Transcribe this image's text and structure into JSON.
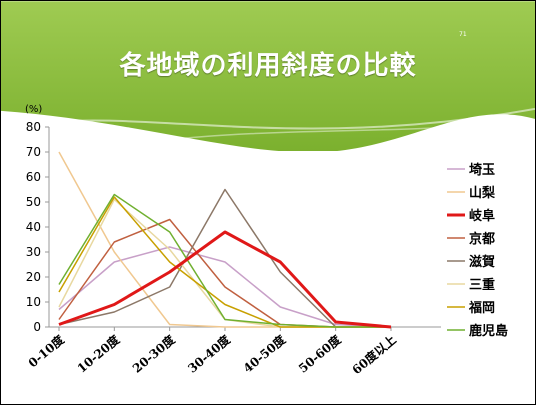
{
  "slide": {
    "title": "各地域の利用斜度の比較",
    "number": "71",
    "banner_color": "#8cbd3e"
  },
  "chart_data": {
    "type": "line",
    "title": "各地域の利用斜度の比較",
    "ylabel": "(%)",
    "xlabel": "",
    "ylim": [
      0,
      80
    ],
    "yticks": [
      0,
      10,
      20,
      30,
      40,
      50,
      60,
      70,
      80
    ],
    "categories": [
      "0-10度",
      "10-20度",
      "20-30度",
      "30-40度",
      "40-50度",
      "50-60度",
      "60度以上"
    ],
    "grid": false,
    "legend_position": "right",
    "series": [
      {
        "name": "埼玉",
        "color": "#c8a0c8",
        "width": 1.5,
        "values": [
          7,
          26,
          32,
          26,
          8,
          1,
          0
        ]
      },
      {
        "name": "山梨",
        "color": "#f0c890",
        "width": 1.5,
        "values": [
          70,
          30,
          1,
          0,
          0,
          0,
          0
        ]
      },
      {
        "name": "岐阜",
        "color": "#e01818",
        "width": 3,
        "values": [
          1,
          9,
          22,
          38,
          26,
          2,
          0
        ]
      },
      {
        "name": "京都",
        "color": "#c06040",
        "width": 1.5,
        "values": [
          3,
          34,
          43,
          16,
          1,
          0,
          0
        ]
      },
      {
        "name": "滋賀",
        "color": "#8c7868",
        "width": 1.5,
        "values": [
          1,
          6,
          16,
          55,
          22,
          0,
          0
        ]
      },
      {
        "name": "三重",
        "color": "#e8d8a0",
        "width": 1.5,
        "values": [
          8,
          51,
          31,
          3,
          0,
          0,
          0
        ]
      },
      {
        "name": "福岡",
        "color": "#c8a000",
        "width": 1.5,
        "values": [
          14,
          52,
          26,
          9,
          0,
          0,
          0
        ]
      },
      {
        "name": "鹿児島",
        "color": "#70b030",
        "width": 1.5,
        "values": [
          17,
          53,
          38,
          3,
          1,
          0,
          0
        ]
      }
    ]
  }
}
